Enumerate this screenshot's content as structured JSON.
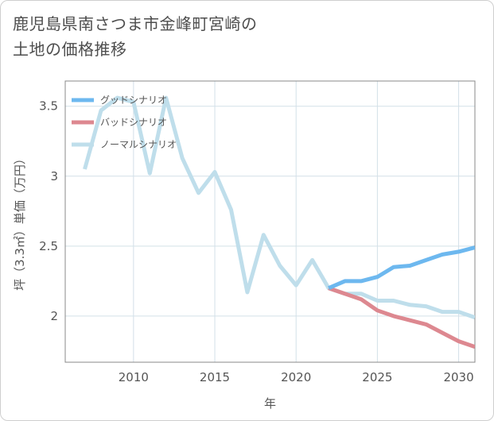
{
  "title_lines": [
    "鹿児島県南さつま市金峰町宮崎の",
    "土地の価格推移"
  ],
  "chart_data": {
    "type": "line",
    "xlabel": "年",
    "ylabel": "坪（3.3㎡）単価（万円）",
    "xlim": [
      2005.8,
      2031
    ],
    "ylim": [
      1.67,
      3.68
    ],
    "xticks": [
      2010,
      2015,
      2020,
      2025,
      2030
    ],
    "yticks": [
      2,
      2.5,
      3,
      3.5
    ],
    "ytick_labels": [
      "2",
      "2.5",
      "3",
      "3.5"
    ],
    "grid": true,
    "legend_position": "top-left",
    "series": [
      {
        "name": "グッドシナリオ",
        "color": "#6db8ef",
        "x": [
          2022,
          2023,
          2024,
          2025,
          2026,
          2027,
          2028,
          2029,
          2030,
          2031
        ],
        "y": [
          2.2,
          2.25,
          2.25,
          2.28,
          2.35,
          2.36,
          2.4,
          2.44,
          2.46,
          2.49
        ]
      },
      {
        "name": "バッドシナリオ",
        "color": "#dd8890",
        "x": [
          2022,
          2023,
          2024,
          2025,
          2026,
          2027,
          2028,
          2029,
          2030,
          2031
        ],
        "y": [
          2.2,
          2.16,
          2.12,
          2.04,
          2.0,
          1.97,
          1.94,
          1.88,
          1.82,
          1.78
        ]
      },
      {
        "name": "ノーマルシナリオ",
        "color": "#bfdeeb",
        "x": [
          2007,
          2008,
          2009,
          2010,
          2011,
          2012,
          2013,
          2014,
          2015,
          2016,
          2017,
          2018,
          2019,
          2020,
          2021,
          2022,
          2023,
          2024,
          2025,
          2026,
          2027,
          2028,
          2029,
          2030,
          2031
        ],
        "y": [
          3.05,
          3.47,
          3.56,
          3.53,
          3.02,
          3.56,
          3.13,
          2.88,
          3.03,
          2.76,
          2.17,
          2.58,
          2.36,
          2.22,
          2.4,
          2.2,
          2.16,
          2.16,
          2.11,
          2.11,
          2.08,
          2.07,
          2.03,
          2.03,
          1.99
        ]
      }
    ]
  }
}
